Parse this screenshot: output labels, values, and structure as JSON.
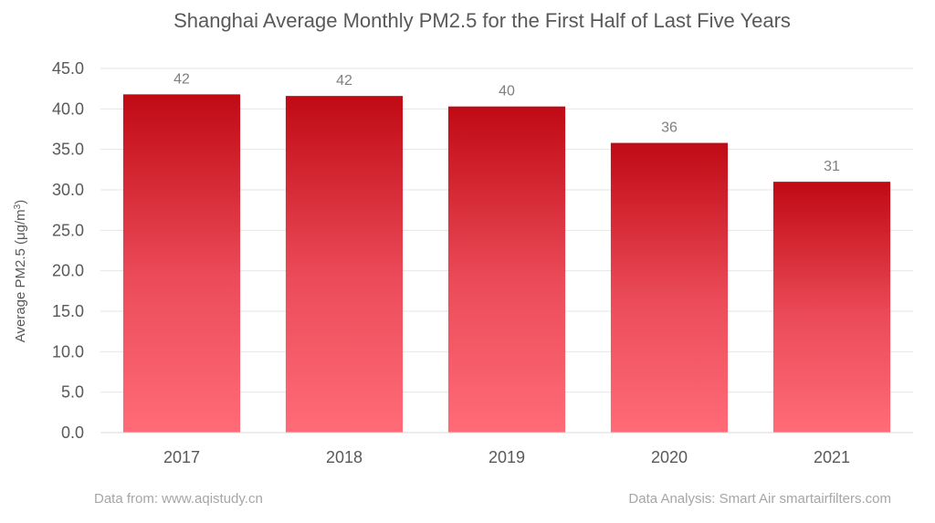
{
  "chart_data": {
    "type": "bar",
    "title": "Shanghai Average Monthly PM2.5 for the First Half of Last Five Years",
    "xlabel": "",
    "ylabel": "Average PM2.5 (μg/m³)",
    "categories": [
      "2017",
      "2018",
      "2019",
      "2020",
      "2021"
    ],
    "values": [
      41.8,
      41.6,
      40.3,
      35.8,
      31.0
    ],
    "data_labels": [
      "42",
      "42",
      "40",
      "36",
      "31"
    ],
    "ylim": [
      0,
      45
    ],
    "yticks": [
      "0.0",
      "5.0",
      "10.0",
      "15.0",
      "20.0",
      "25.0",
      "30.0",
      "35.0",
      "40.0",
      "45.0"
    ],
    "grid": true,
    "bar_color_top": "#c00a14",
    "bar_color_bottom": "#ff6b77"
  },
  "footer": {
    "source": "Data from: www.aqistudy.cn",
    "analysis": "Data Analysis: Smart Air smartairfilters.com"
  }
}
